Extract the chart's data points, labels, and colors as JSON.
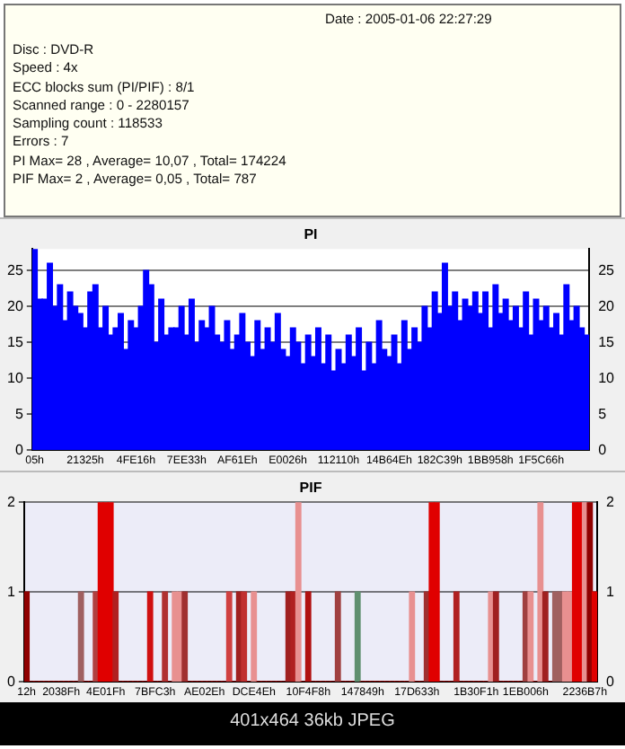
{
  "chart_data": [
    {
      "type": "other",
      "annotations": [
        "Date : 2005-01-06 22:27:29",
        "Disc : DVD-R",
        "Speed : 4x",
        "ECC blocks sum (PI/PIF) : 8/1",
        "Scanned range : 0 - 2280157",
        "Sampling count : 118533",
        "Errors : 7",
        "PI Max= 28 , Average= 10,07 , Total= 174224",
        "PIF Max= 2 , Average= 0,05 , Total= 787"
      ]
    },
    {
      "type": "bar",
      "title": "PI",
      "color": "#0000ff",
      "categories": [
        "05h",
        null,
        null,
        null,
        null,
        null,
        null,
        null,
        null,
        null,
        "21325h",
        null,
        null,
        null,
        null,
        null,
        null,
        null,
        null,
        null,
        "4FE16h",
        null,
        null,
        null,
        null,
        null,
        null,
        null,
        null,
        null,
        "7EE33h",
        null,
        null,
        null,
        null,
        null,
        null,
        null,
        null,
        null,
        "AF61Eh",
        null,
        null,
        null,
        null,
        null,
        null,
        null,
        null,
        null,
        "E0026h",
        null,
        null,
        null,
        null,
        null,
        null,
        null,
        null,
        null,
        "112110h",
        null,
        null,
        null,
        null,
        null,
        null,
        null,
        null,
        null,
        "14B64Eh",
        null,
        null,
        null,
        null,
        null,
        null,
        null,
        null,
        null,
        "182C39h",
        null,
        null,
        null,
        null,
        null,
        null,
        null,
        null,
        null,
        "1BB958h",
        null,
        null,
        null,
        null,
        null,
        null,
        null,
        null,
        null,
        "1F5C66h",
        null,
        null,
        null,
        null,
        null,
        null,
        null,
        null,
        null
      ],
      "values": [
        28,
        21,
        21,
        26,
        20,
        23,
        18,
        22,
        20,
        19,
        17,
        22,
        23,
        17,
        20,
        16,
        17,
        19,
        14,
        18,
        17,
        20,
        25,
        23,
        15,
        21,
        16,
        17,
        17,
        20,
        16,
        21,
        15,
        18,
        17,
        20,
        16,
        15,
        18,
        14,
        16,
        19,
        15,
        13,
        18,
        14,
        17,
        15,
        19,
        14,
        13,
        17,
        15,
        12,
        16,
        13,
        17,
        12,
        16,
        11,
        14,
        12,
        16,
        13,
        17,
        11,
        15,
        12,
        18,
        14,
        13,
        16,
        12,
        18,
        14,
        17,
        15,
        20,
        17,
        22,
        19,
        26,
        20,
        22,
        18,
        21,
        20,
        22,
        19,
        22,
        17,
        23,
        19,
        21,
        18,
        20,
        17,
        22,
        16,
        21,
        18,
        20,
        17,
        19,
        16,
        23,
        18,
        20,
        17,
        16
      ],
      "ylim": [
        0,
        28
      ],
      "yticks": [
        0,
        5,
        10,
        15,
        20,
        25
      ],
      "y2lim": [
        0,
        28
      ],
      "y2ticks": [
        0,
        5,
        10,
        15,
        20,
        25
      ],
      "grid": "y"
    },
    {
      "type": "bar",
      "title": "PIF",
      "categories": [
        "12h",
        null,
        null,
        null,
        null,
        null,
        null,
        "2038Fh",
        null,
        null,
        null,
        null,
        null,
        null,
        null,
        null,
        "4E01Fh",
        null,
        null,
        null,
        null,
        null,
        null,
        null,
        null,
        null,
        "7BFC3h",
        null,
        null,
        null,
        null,
        null,
        null,
        null,
        null,
        null,
        "AE02Eh",
        null,
        null,
        null,
        null,
        null,
        null,
        null,
        null,
        null,
        "DCE4Eh",
        null,
        null,
        null,
        null,
        null,
        null,
        null,
        null,
        null,
        null,
        "10F4F8h",
        null,
        null,
        null,
        null,
        null,
        null,
        null,
        null,
        null,
        null,
        "147849h",
        null,
        null,
        null,
        null,
        null,
        null,
        null,
        null,
        null,
        null,
        "17D633h",
        null,
        null,
        null,
        null,
        null,
        null,
        null,
        null,
        null,
        null,
        null,
        "1B30F1h",
        null,
        null,
        null,
        null,
        null,
        null,
        null,
        null,
        null,
        "1EB006h",
        null,
        null,
        null,
        null,
        null,
        null,
        null,
        null,
        null,
        null,
        null,
        "2236B7h",
        null,
        null
      ],
      "values": [
        1,
        0,
        0,
        0,
        0,
        0,
        0,
        0,
        0,
        0,
        0,
        1,
        0,
        0,
        1,
        2,
        2,
        2,
        1,
        0,
        0,
        0,
        0,
        0,
        0,
        1,
        0,
        0,
        1,
        0,
        1,
        1,
        1,
        0,
        0,
        0,
        0,
        0,
        0,
        0,
        0,
        1,
        0,
        1,
        1,
        0,
        1,
        0,
        0,
        0,
        0,
        0,
        0,
        1,
        1,
        2,
        0,
        1,
        0,
        0,
        0,
        0,
        0,
        1,
        0,
        0,
        0,
        1,
        0,
        0,
        0,
        0,
        0,
        0,
        0,
        0,
        0,
        0,
        1,
        0,
        0,
        1,
        2,
        2,
        0,
        0,
        0,
        1,
        0,
        0,
        0,
        0,
        0,
        0,
        1,
        1,
        0,
        0,
        0,
        0,
        0,
        1,
        1,
        0,
        2,
        1,
        0,
        1,
        1,
        1,
        1,
        2,
        2,
        2,
        2,
        1
      ],
      "colors": [
        "#900000",
        "#e00000",
        "#e00000",
        "#e00000",
        "#e00000",
        "#e00000",
        "#e00000",
        "#e00000",
        "#e00000",
        "#e00000",
        "#e00000",
        "#a06060",
        "#e00000",
        "#e00000",
        "#b04040",
        "#e00000",
        "#e00000",
        "#e00000",
        "#b02020",
        "#e00000",
        "#e00000",
        "#e00000",
        "#e00000",
        "#e00000",
        "#e00000",
        "#d01010",
        "#e00000",
        "#e00000",
        "#b03030",
        "#e00000",
        "#e89090",
        "#e89090",
        "#a03030",
        "#e00000",
        "#e00000",
        "#e00000",
        "#e00000",
        "#e00000",
        "#e00000",
        "#e00000",
        "#e00000",
        "#d04040",
        "#e00000",
        "#a02020",
        "#c03030",
        "#e00000",
        "#e89090",
        "#e00000",
        "#e00000",
        "#e00000",
        "#e00000",
        "#e00000",
        "#e00000",
        "#a02020",
        "#b02020",
        "#e89090",
        "#e00000",
        "#b01010",
        "#e00000",
        "#e00000",
        "#e00000",
        "#e00000",
        "#e00000",
        "#a04040",
        "#e00000",
        "#e00000",
        "#e00000",
        "#609070",
        "#e00000",
        "#e00000",
        "#e00000",
        "#e00000",
        "#e00000",
        "#e00000",
        "#e00000",
        "#e00000",
        "#e00000",
        "#e00000",
        "#e89090",
        "#e00000",
        "#e00000",
        "#a03030",
        "#e00000",
        "#e00000",
        "#e00000",
        "#e00000",
        "#e00000",
        "#b02020",
        "#e00000",
        "#e00000",
        "#e00000",
        "#e00000",
        "#e00000",
        "#e00000",
        "#e89090",
        "#a02020",
        "#e00000",
        "#e00000",
        "#e00000",
        "#e00000",
        "#e00000",
        "#a04040",
        "#e89090",
        "#e00000",
        "#e89090",
        "#a02020",
        "#e00000",
        "#a06060",
        "#a06060",
        "#e89090",
        "#e89090",
        "#e00000",
        "#e00000",
        "#e89090",
        "#900000",
        "#e00000"
      ],
      "ylim": [
        0,
        2
      ],
      "yticks": [
        0,
        1,
        2
      ],
      "y2lim": [
        0,
        2
      ],
      "y2ticks": [
        0,
        1,
        2
      ],
      "grid": "y",
      "annotations": [
        "401x464 36kb JPEG"
      ]
    }
  ]
}
